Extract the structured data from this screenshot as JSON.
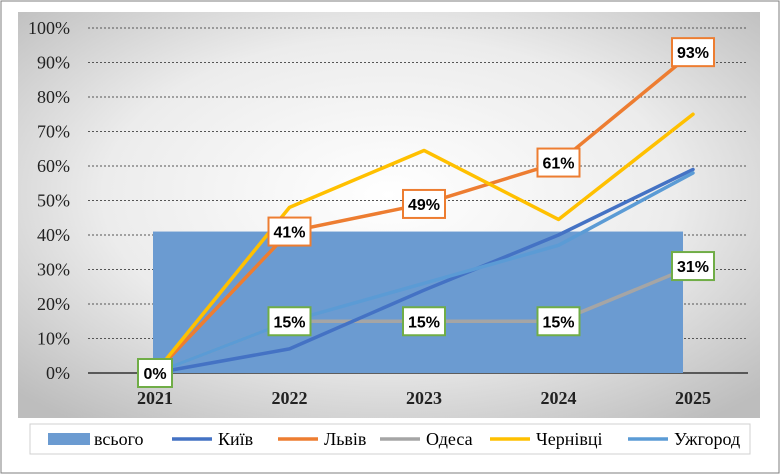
{
  "chart_data": {
    "type": "line",
    "categories": [
      "2021",
      "2022",
      "2023",
      "2024",
      "2025"
    ],
    "y_ticks": [
      "0%",
      "10%",
      "20%",
      "30%",
      "40%",
      "50%",
      "60%",
      "70%",
      "80%",
      "90%",
      "100%"
    ],
    "ylim": [
      0,
      100
    ],
    "grid": true,
    "legend_position": "bottom",
    "title": "",
    "xlabel": "",
    "ylabel": "",
    "background_series": {
      "name": "всього",
      "type": "area",
      "color": "#6b9bd1",
      "values": [
        41,
        41,
        41,
        41,
        41
      ]
    },
    "series": [
      {
        "name": "Київ",
        "color": "#4472c4",
        "values": [
          0,
          7,
          24,
          40,
          59
        ]
      },
      {
        "name": "Львів",
        "color": "#ed7d31",
        "values": [
          0,
          41,
          49,
          61,
          93
        ]
      },
      {
        "name": "Одеса",
        "color": "#a5a5a5",
        "values": [
          0,
          15,
          15,
          15,
          31
        ]
      },
      {
        "name": "Чернівці",
        "color": "#ffc000",
        "values": [
          0,
          48,
          64.5,
          44.5,
          75
        ]
      },
      {
        "name": "Ужгород",
        "color": "#5b9bd5",
        "values": [
          0,
          15,
          26,
          37,
          58
        ]
      }
    ],
    "data_labels": [
      {
        "series": "Львів",
        "index": 0,
        "value": 0,
        "text": "0%",
        "border": "#70ad47"
      },
      {
        "series": "Львів",
        "index": 1,
        "value": 41,
        "text": "41%",
        "border": "#ed7d31"
      },
      {
        "series": "Львів",
        "index": 2,
        "value": 49,
        "text": "49%",
        "border": "#ed7d31"
      },
      {
        "series": "Львів",
        "index": 3,
        "value": 61,
        "text": "61%",
        "border": "#ed7d31"
      },
      {
        "series": "Львів",
        "index": 4,
        "value": 93,
        "text": "93%",
        "border": "#ed7d31"
      },
      {
        "series": "Одеса",
        "index": 1,
        "value": 15,
        "text": "15%",
        "border": "#70ad47"
      },
      {
        "series": "Одеса",
        "index": 2,
        "value": 15,
        "text": "15%",
        "border": "#70ad47"
      },
      {
        "series": "Одеса",
        "index": 3,
        "value": 15,
        "text": "15%",
        "border": "#70ad47"
      },
      {
        "series": "Одеса",
        "index": 4,
        "value": 31,
        "text": "31%",
        "border": "#70ad47"
      }
    ]
  }
}
